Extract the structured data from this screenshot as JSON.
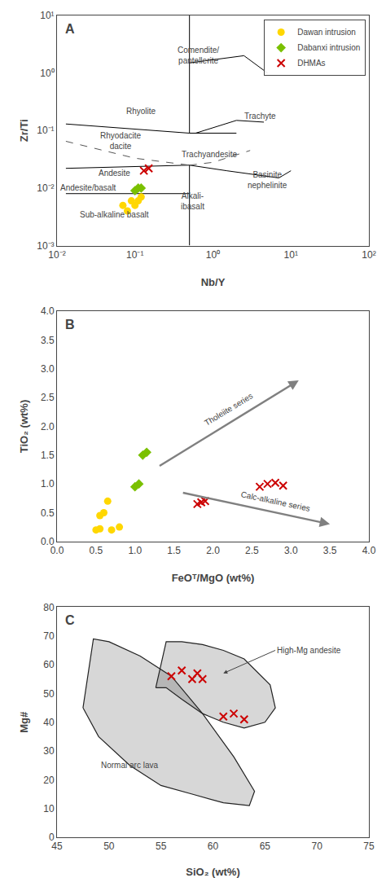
{
  "chart_data": [
    {
      "type": "scatter",
      "title": "A",
      "xlabel": "Nb/Y",
      "ylabel": "Zr/Ti",
      "log": true,
      "xlim": [
        0.01,
        100
      ],
      "ylim": [
        0.001,
        10
      ],
      "xticks": [
        {
          "value": 0.01,
          "label": "10⁻²"
        },
        {
          "value": 0.1,
          "label": "10⁻¹"
        },
        {
          "value": 1,
          "label": "10⁰"
        },
        {
          "value": 10,
          "label": "10¹"
        },
        {
          "value": 100,
          "label": "10²"
        }
      ],
      "yticks": [
        {
          "value": 0.001,
          "label": "10⁻³"
        },
        {
          "value": 0.01,
          "label": "10⁻²"
        },
        {
          "value": 0.1,
          "label": "10⁻¹"
        },
        {
          "value": 1,
          "label": "10⁰"
        },
        {
          "value": 10,
          "label": "10¹"
        }
      ],
      "grid": false,
      "legend": "upper right",
      "series": [
        {
          "type": "line",
          "color": "#000000",
          "line_style": "solid",
          "x": [
            0.5,
            0.5,
            null,
            0.013,
            0.5,
            null,
            0.013,
            0.5,
            null,
            0.013,
            0.5,
            null,
            0.5,
            0.5,
            null,
            0.5,
            1.5,
            7.0,
            null,
            0.5,
            0.6,
            2.0,
            null,
            2.0,
            4.5,
            null,
            0.5,
            2.0,
            null,
            0.5,
            2.5,
            null,
            2.5,
            5.0,
            null,
            7.0,
            10.0
          ],
          "values": [
            0.09,
            10,
            null,
            0.13,
            0.09,
            null,
            0.022,
            0.025,
            null,
            0.008,
            0.008,
            null,
            0.001,
            0.025,
            null,
            0.025,
            0.02,
            0.015,
            null,
            0.09,
            0.09,
            0.15,
            null,
            0.15,
            0.14,
            null,
            0.09,
            0.09,
            null,
            1.5,
            2.0,
            null,
            2.0,
            1.0,
            null,
            0.015,
            0.02
          ]
        },
        {
          "type": "line",
          "color": "#555555",
          "line_style": "dashed",
          "x": [
            0.013,
            0.1,
            0.5,
            null,
            0.5,
            1.0,
            3.0
          ],
          "values": [
            0.065,
            0.033,
            0.025,
            null,
            0.025,
            0.028,
            0.045
          ]
        },
        {
          "name": "Dawan intrusion",
          "color": "#FFD700",
          "marker": "circle",
          "x": [
            0.07,
            0.08,
            0.09,
            0.1,
            0.11,
            0.12
          ],
          "values": [
            0.005,
            0.004,
            0.006,
            0.005,
            0.006,
            0.007
          ]
        },
        {
          "name": "Dabanxi intrusion",
          "color": "#7AC000",
          "marker": "diamond",
          "x": [
            0.1,
            0.11,
            0.12
          ],
          "values": [
            0.009,
            0.01,
            0.01
          ]
        },
        {
          "name": "DHMAs",
          "color": "#CC0000",
          "marker": "x",
          "x": [
            0.13,
            0.15
          ],
          "values": [
            0.02,
            0.022
          ]
        }
      ],
      "annotations": [
        {
          "text": "Comendite/\npantellerite",
          "x": 0.65,
          "y": 2.0
        },
        {
          "text": "Rhyolite",
          "x": 0.12,
          "y": 0.22
        },
        {
          "text": "Rhyodacite\ndacite",
          "x": 0.065,
          "y": 0.065
        },
        {
          "text": "Andesite",
          "x": 0.055,
          "y": 0.018
        },
        {
          "text": "Andesite/basalt",
          "x": 0.025,
          "y": 0.01
        },
        {
          "text": "Sub-alkaline basalt",
          "x": 0.055,
          "y": 0.0035
        },
        {
          "text": "Trachyte",
          "x": 4.0,
          "y": 0.18
        },
        {
          "text": "Trachyandesite",
          "x": 0.9,
          "y": 0.038
        },
        {
          "text": "Basinite\nnephelinite",
          "x": 5.0,
          "y": 0.014
        },
        {
          "text": "Alkali-\nibasalt",
          "x": 0.55,
          "y": 0.006
        }
      ]
    },
    {
      "type": "scatter",
      "title": "B",
      "xlabel": "FeOᵀ/MgO (wt%)",
      "ylabel": "TiO₂ (wt%)",
      "xlim": [
        0,
        4
      ],
      "ylim": [
        0,
        4
      ],
      "xticks": [
        {
          "value": 0,
          "label": "0.0"
        },
        0.5,
        {
          "value": 1,
          "label": "1.0"
        },
        1.5,
        {
          "value": 2,
          "label": "2.0"
        },
        2.5,
        {
          "value": 3,
          "label": "3.0"
        },
        3.5,
        {
          "value": 4,
          "label": "4.0"
        }
      ],
      "yticks": [
        {
          "value": 0,
          "label": "0.0"
        },
        0.5,
        {
          "value": 1,
          "label": "1.0"
        },
        1.5,
        {
          "value": 2,
          "label": "2.0"
        },
        2.5,
        {
          "value": 3,
          "label": "3.0"
        },
        3.5,
        {
          "value": 4,
          "label": "4.0"
        }
      ],
      "grid": false,
      "series": [
        {
          "color": "#FFD700",
          "marker": "circle",
          "x": [
            0.5,
            0.55,
            0.55,
            0.6,
            0.65,
            0.7,
            0.8
          ],
          "values": [
            0.2,
            0.22,
            0.45,
            0.5,
            0.7,
            0.2,
            0.25
          ]
        },
        {
          "color": "#7AC000",
          "marker": "diamond",
          "x": [
            1.0,
            1.05,
            1.1,
            1.15
          ],
          "values": [
            0.95,
            1.0,
            1.5,
            1.55
          ]
        },
        {
          "color": "#CC0000",
          "marker": "x",
          "x": [
            1.8,
            1.85,
            1.9,
            2.6,
            2.7,
            2.8,
            2.9
          ],
          "values": [
            0.65,
            0.68,
            0.7,
            0.95,
            1.0,
            1.02,
            0.97
          ]
        }
      ],
      "arrows": [
        {
          "from": [
            1.3,
            1.3
          ],
          "to": [
            3.1,
            2.8
          ],
          "color": "#808080",
          "label": {
            "text": "Tholeiite series",
            "x": 2.2,
            "y": 2.2
          }
        },
        {
          "from": [
            1.6,
            0.85
          ],
          "to": [
            3.5,
            0.3
          ],
          "color": "#808080",
          "label": {
            "text": "Calc-alkaline series",
            "x": 2.8,
            "y": 0.6
          }
        }
      ]
    },
    {
      "type": "scatter",
      "title": "C",
      "xlabel": "SiO₂ (wt%)",
      "ylabel": "Mg#",
      "xlim": [
        45,
        75
      ],
      "ylim": [
        0,
        80
      ],
      "xticks": [
        45,
        50,
        55,
        60,
        65,
        70,
        75
      ],
      "yticks": [
        0,
        10,
        20,
        30,
        40,
        50,
        60,
        70,
        80
      ],
      "grid": false,
      "series": [
        {
          "type": "area",
          "color": "#222222",
          "x": [
            47.5,
            48.5,
            50,
            53,
            56,
            59,
            62,
            64,
            63.5,
            61,
            58,
            55,
            52,
            49,
            47.5
          ],
          "values": [
            45,
            69,
            68,
            63,
            56,
            43,
            28,
            16,
            11,
            12,
            15,
            18,
            25,
            35,
            45
          ]
        },
        {
          "type": "area",
          "color": "#222222",
          "x": [
            54.5,
            55.5,
            57,
            59,
            61,
            63,
            65.5,
            66,
            65,
            63,
            61,
            59,
            57,
            55.5,
            54.5
          ],
          "values": [
            52,
            68,
            68,
            67,
            65,
            62,
            53,
            45,
            40,
            38,
            40,
            43,
            48,
            52,
            52
          ]
        },
        {
          "color": "#CC0000",
          "marker": "x",
          "x": [
            56,
            57,
            58,
            58.5,
            59,
            61,
            62,
            63
          ],
          "values": [
            56,
            58,
            55,
            57,
            55,
            42,
            43,
            41
          ]
        }
      ],
      "annotations": [
        {
          "text": "Normal arc lava",
          "x": 52,
          "y": 25
        },
        {
          "text": "High-Mg andesite",
          "x": 66,
          "y": 65,
          "arrow_to": [
            61,
            57
          ]
        }
      ]
    }
  ]
}
